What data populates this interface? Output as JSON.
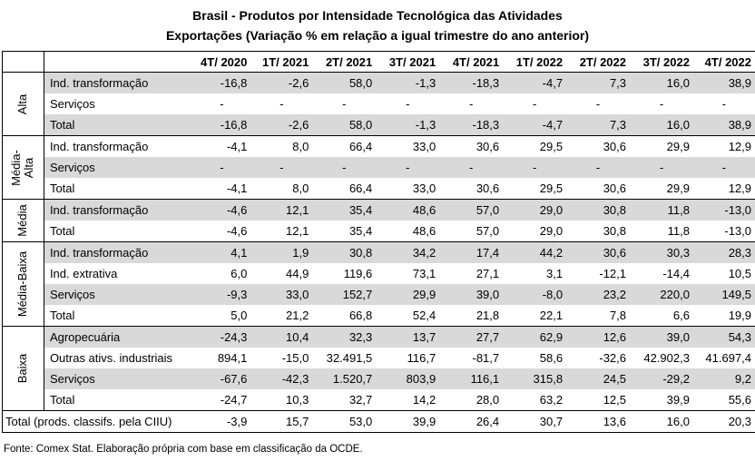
{
  "title": "Brasil - Produtos por Intensidade Tecnológica das Atividades",
  "subtitle": "Exportações (Variação % em relação a igual trimestre do ano anterior)",
  "columns": [
    "4T/ 2020",
    "1T/ 2021",
    "2T/ 2021",
    "3T/ 2021",
    "4T/ 2021",
    "1T/ 2022",
    "2T/ 2022",
    "3T/ 2022",
    "4T/ 2022"
  ],
  "groups": [
    {
      "name": "Alta",
      "rows": [
        {
          "label": "Ind. transformação",
          "shaded": true,
          "values": [
            "-16,8",
            "-2,6",
            "58,0",
            "-1,3",
            "-18,3",
            "-4,7",
            "7,3",
            "16,0",
            "38,9"
          ]
        },
        {
          "label": "Serviços",
          "shaded": false,
          "values": [
            "-",
            "-",
            "-",
            "-",
            "-",
            "-",
            "-",
            "-",
            "-"
          ]
        },
        {
          "label": "Total",
          "shaded": true,
          "values": [
            "-16,8",
            "-2,6",
            "58,0",
            "-1,3",
            "-18,3",
            "-4,7",
            "7,3",
            "16,0",
            "38,9"
          ]
        }
      ]
    },
    {
      "name": "Média-\nAlta",
      "rows": [
        {
          "label": "Ind. transformação",
          "shaded": false,
          "values": [
            "-4,1",
            "8,0",
            "66,4",
            "33,0",
            "30,6",
            "29,5",
            "30,6",
            "29,9",
            "12,9"
          ]
        },
        {
          "label": "Serviços",
          "shaded": true,
          "values": [
            "-",
            "-",
            "-",
            "-",
            "-",
            "-",
            "-",
            "-",
            "-"
          ]
        },
        {
          "label": "Total",
          "shaded": false,
          "values": [
            "-4,1",
            "8,0",
            "66,4",
            "33,0",
            "30,6",
            "29,5",
            "30,6",
            "29,9",
            "12,9"
          ]
        }
      ]
    },
    {
      "name": "Média",
      "rows": [
        {
          "label": "Ind. transformação",
          "shaded": true,
          "values": [
            "-4,6",
            "12,1",
            "35,4",
            "48,6",
            "57,0",
            "29,0",
            "30,8",
            "11,8",
            "-13,0"
          ]
        },
        {
          "label": "Total",
          "shaded": false,
          "values": [
            "-4,6",
            "12,1",
            "35,4",
            "48,6",
            "57,0",
            "29,0",
            "30,8",
            "11,8",
            "-13,0"
          ]
        }
      ]
    },
    {
      "name": "Média-Baixa",
      "rows": [
        {
          "label": "Ind. transformação",
          "shaded": true,
          "values": [
            "4,1",
            "1,9",
            "30,8",
            "34,2",
            "17,4",
            "44,2",
            "30,6",
            "30,3",
            "28,3"
          ]
        },
        {
          "label": "Ind. extrativa",
          "shaded": false,
          "values": [
            "6,0",
            "44,9",
            "119,6",
            "73,1",
            "27,1",
            "3,1",
            "-12,1",
            "-14,4",
            "10,5"
          ]
        },
        {
          "label": "Serviços",
          "shaded": true,
          "values": [
            "-9,3",
            "33,0",
            "152,7",
            "29,9",
            "39,0",
            "-8,0",
            "23,2",
            "220,0",
            "149,5"
          ]
        },
        {
          "label": "Total",
          "shaded": false,
          "values": [
            "5,0",
            "21,2",
            "66,8",
            "52,4",
            "21,8",
            "22,1",
            "7,8",
            "6,6",
            "19,9"
          ]
        }
      ]
    },
    {
      "name": "Baixa",
      "rows": [
        {
          "label": "Agropecuária",
          "shaded": true,
          "values": [
            "-24,3",
            "10,4",
            "32,3",
            "13,7",
            "27,7",
            "62,9",
            "12,6",
            "39,0",
            "54,3"
          ]
        },
        {
          "label": "Outras ativs. industriais",
          "shaded": false,
          "values": [
            "894,1",
            "-15,0",
            "32.491,5",
            "116,7",
            "-81,7",
            "58,6",
            "-32,6",
            "42.902,3",
            "41.697,4"
          ]
        },
        {
          "label": "Serviços",
          "shaded": true,
          "values": [
            "-67,6",
            "-42,3",
            "1.520,7",
            "803,9",
            "116,1",
            "315,8",
            "24,5",
            "-29,2",
            "9,2"
          ]
        },
        {
          "label": "Total",
          "shaded": false,
          "values": [
            "-24,7",
            "10,3",
            "32,7",
            "14,2",
            "28,0",
            "63,2",
            "12,5",
            "39,9",
            "55,6"
          ]
        }
      ]
    }
  ],
  "total": {
    "label": "Total (prods. classifs. pela CIIU)",
    "values": [
      "-3,9",
      "15,7",
      "53,0",
      "39,9",
      "26,4",
      "30,7",
      "13,6",
      "16,0",
      "20,3"
    ]
  },
  "source": "Fonte: Comex Stat. Elaboração própria com base em classificação da OCDE."
}
